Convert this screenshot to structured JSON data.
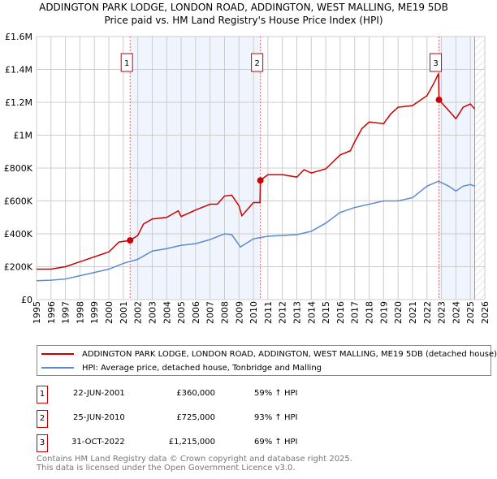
{
  "chart_data": {
    "type": "line",
    "title": "ADDINGTON PARK LODGE, LONDON ROAD, ADDINGTON, WEST MALLING, ME19 5DB",
    "subtitle": "Price paid vs. HM Land Registry's House Price Index (HPI)",
    "xlim": [
      1995,
      2026
    ],
    "ylim": [
      0,
      1600000
    ],
    "x_ticks": [
      "1995",
      "1996",
      "1997",
      "1998",
      "1999",
      "2000",
      "2001",
      "2002",
      "2003",
      "2004",
      "2005",
      "2006",
      "2007",
      "2008",
      "2009",
      "2010",
      "2011",
      "2012",
      "2013",
      "2014",
      "2015",
      "2016",
      "2017",
      "2018",
      "2019",
      "2020",
      "2021",
      "2022",
      "2023",
      "2024",
      "2025",
      "2026"
    ],
    "y_ticks": [
      {
        "v": 0,
        "label": "£0"
      },
      {
        "v": 200000,
        "label": "£200K"
      },
      {
        "v": 400000,
        "label": "£400K"
      },
      {
        "v": 600000,
        "label": "£600K"
      },
      {
        "v": 800000,
        "label": "£800K"
      },
      {
        "v": 1000000,
        "label": "£1M"
      },
      {
        "v": 1200000,
        "label": "£1.2M"
      },
      {
        "v": 1400000,
        "label": "£1.4M"
      },
      {
        "v": 1600000,
        "label": "£1.6M"
      }
    ],
    "grid": true,
    "shaded_ranges": [
      [
        2001.47,
        2010.48
      ],
      [
        2022.83,
        2025.3
      ]
    ],
    "hatched_from": 2025.3,
    "series": [
      {
        "name": "ADDINGTON PARK LODGE, LONDON ROAD, ADDINGTON, WEST MALLING, ME19 5DB (detached house)",
        "color": "#cc0000",
        "x": [
          1995,
          1996,
          1997,
          1998,
          1999,
          2000,
          2000.7,
          2001.47,
          2002,
          2002.4,
          2003,
          2004,
          2004.8,
          2005,
          2006,
          2007,
          2007.5,
          2008,
          2008.5,
          2009,
          2009.2,
          2010,
          2010.45,
          2010.48,
          2011,
          2012,
          2013,
          2013.5,
          2014,
          2015,
          2016,
          2016.7,
          2017,
          2017.5,
          2018,
          2019,
          2019.5,
          2020,
          2021,
          2022,
          2022.5,
          2022.8,
          2022.83,
          2023.5,
          2024,
          2024.5,
          2025,
          2025.3
        ],
        "y": [
          185000,
          185000,
          200000,
          230000,
          260000,
          290000,
          350000,
          360000,
          390000,
          460000,
          490000,
          500000,
          540000,
          505000,
          545000,
          580000,
          580000,
          630000,
          635000,
          570000,
          510000,
          590000,
          590000,
          725000,
          760000,
          760000,
          745000,
          790000,
          770000,
          795000,
          880000,
          905000,
          960000,
          1040000,
          1080000,
          1070000,
          1130000,
          1170000,
          1180000,
          1240000,
          1320000,
          1375000,
          1215000,
          1150000,
          1100000,
          1170000,
          1190000,
          1160000
        ]
      },
      {
        "name": "HPI: Average price, detached house, Tonbridge and Malling",
        "color": "#5b8bd0",
        "x": [
          1995,
          1996,
          1997,
          1998,
          1999,
          2000,
          2001,
          2002,
          2003,
          2004,
          2005,
          2006,
          2007,
          2008,
          2008.5,
          2009.1,
          2010,
          2011,
          2012,
          2013,
          2014,
          2015,
          2016,
          2017,
          2018,
          2019,
          2020,
          2021,
          2022,
          2022.8,
          2023.5,
          2024,
          2024.5,
          2025,
          2025.3
        ],
        "y": [
          115000,
          118000,
          125000,
          145000,
          165000,
          185000,
          220000,
          245000,
          295000,
          310000,
          330000,
          340000,
          365000,
          400000,
          395000,
          320000,
          370000,
          385000,
          390000,
          395000,
          415000,
          465000,
          530000,
          560000,
          580000,
          600000,
          600000,
          620000,
          690000,
          720000,
          690000,
          660000,
          690000,
          700000,
          690000
        ]
      }
    ],
    "sales": [
      {
        "label": "1",
        "x": 2001.47,
        "y": 360000,
        "date": "22-JUN-2001",
        "price": "£360,000",
        "hpi": "59% ↑ HPI"
      },
      {
        "label": "2",
        "x": 2010.48,
        "y": 725000,
        "date": "25-JUN-2010",
        "price": "£725,000",
        "hpi": "93% ↑ HPI"
      },
      {
        "label": "3",
        "x": 2022.83,
        "y": 1215000,
        "date": "31-OCT-2022",
        "price": "£1,215,000",
        "hpi": "69% ↑ HPI"
      }
    ]
  },
  "legend": {
    "red": "ADDINGTON PARK LODGE, LONDON ROAD, ADDINGTON, WEST MALLING, ME19 5DB (detached house)",
    "blue": "HPI: Average price, detached house, Tonbridge and Malling"
  },
  "footer": {
    "line1": "Contains HM Land Registry data © Crown copyright and database right 2025.",
    "line2": "This data is licensed under the Open Government Licence v3.0."
  }
}
